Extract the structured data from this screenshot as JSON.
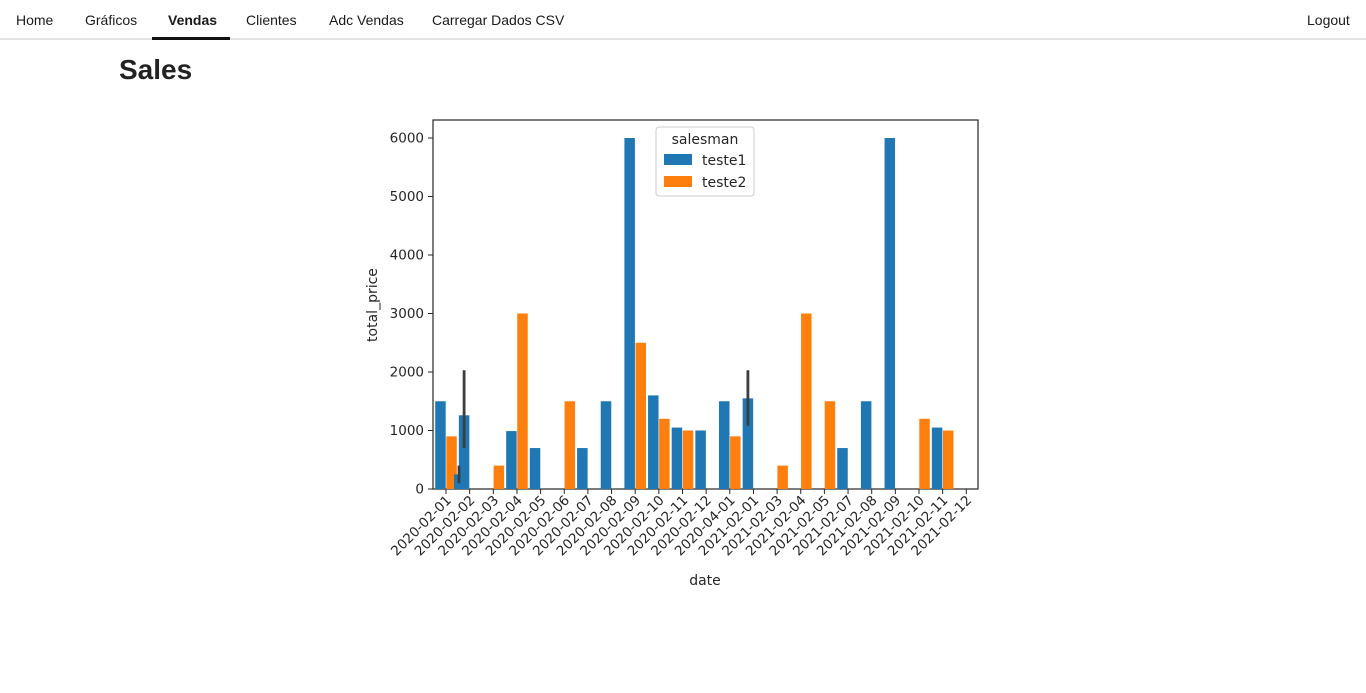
{
  "nav": {
    "items": [
      {
        "label": "Home"
      },
      {
        "label": "Gráficos"
      },
      {
        "label": "Vendas"
      },
      {
        "label": "Clientes"
      },
      {
        "label": "Adc Vendas"
      },
      {
        "label": "Carregar Dados CSV"
      }
    ],
    "active": "Vendas",
    "logout_label": "Logout"
  },
  "page": {
    "title": "Sales"
  },
  "chart_data": {
    "type": "bar",
    "xlabel": "date",
    "ylabel": "total_price",
    "ylim": [
      0,
      6300
    ],
    "yticks": [
      0,
      1000,
      2000,
      3000,
      4000,
      5000,
      6000
    ],
    "grid": false,
    "legend": {
      "title": "salesman",
      "placement": "top-center"
    },
    "categories": [
      "2020-02-01",
      "2020-02-02",
      "2020-02-03",
      "2020-02-04",
      "2020-02-05",
      "2020-02-06",
      "2020-02-07",
      "2020-02-08",
      "2020-02-09",
      "2020-02-10",
      "2020-02-11",
      "2020-02-12",
      "2020-04-01",
      "2021-02-01",
      "2021-02-03",
      "2021-02-04",
      "2021-02-05",
      "2021-02-07",
      "2021-02-08",
      "2021-02-09",
      "2021-02-10",
      "2021-02-11",
      "2021-02-12"
    ],
    "series": [
      {
        "name": "teste1",
        "color": "#1f77b4",
        "values": [
          1500,
          1260,
          null,
          990,
          700,
          null,
          700,
          1500,
          6000,
          1600,
          1050,
          1000,
          1500,
          1550,
          null,
          null,
          null,
          700,
          1500,
          6000,
          null,
          1050,
          null
        ],
        "error_bars": [
          null,
          [
            700,
            2030
          ],
          null,
          null,
          null,
          null,
          null,
          null,
          null,
          null,
          null,
          null,
          null,
          [
            1080,
            2030
          ],
          null,
          null,
          null,
          null,
          null,
          null,
          null,
          null,
          null
        ]
      },
      {
        "name": "teste2",
        "color": "#ff7f0e",
        "values": [
          900,
          null,
          400,
          3000,
          null,
          1500,
          null,
          null,
          2500,
          1200,
          1000,
          null,
          900,
          null,
          400,
          3000,
          1500,
          null,
          null,
          null,
          1200,
          1000,
          null
        ]
      }
    ],
    "extra_bars": [
      {
        "label": "2020-02-01 (third hue)",
        "value": 250,
        "error": [
          100,
          400
        ],
        "color": "#1f77b4"
      }
    ]
  }
}
